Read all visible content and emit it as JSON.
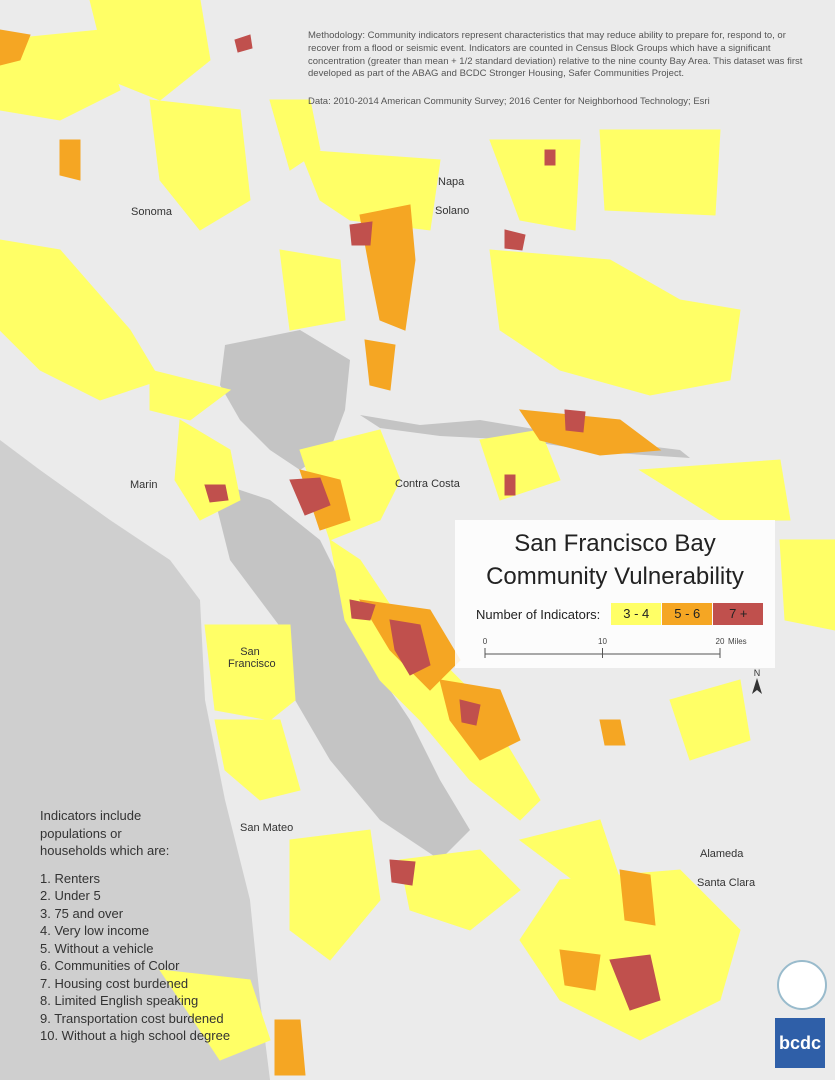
{
  "notes": {
    "methodology": "Methodology: Community indicators represent characteristics that may reduce ability to prepare for, respond to, or recover from a flood or seismic event. Indicators are counted in Census Block Groups which have a significant concentration (greater than mean + 1/2 standard deviation) relative to the nine county Bay Area. This dataset was first developed as part of the ABAG and BCDC Stronger Housing, Safer Communities Project.",
    "data_source": "Data: 2010-2014 American Community Survey; 2016 Center for Neighborhood Technology; Esri"
  },
  "place_labels": [
    "Sonoma",
    "Napa",
    "Solano",
    "Marin",
    "Contra Costa",
    "San Francisco",
    "San Mateo",
    "Alameda",
    "Santa Clara"
  ],
  "title": [
    "San Francisco Bay",
    "Community Vulnerability"
  ],
  "legend": {
    "label": "Number of Indicators:",
    "classes": [
      {
        "label": "3 - 4",
        "color": "#ffff66"
      },
      {
        "label": "5 - 6",
        "color": "#f5a623"
      },
      {
        "label": "7 +",
        "color": "#c0504d"
      }
    ]
  },
  "scale_bar": {
    "xlim": [
      0,
      20
    ],
    "ticks": [
      0,
      10,
      20
    ],
    "unit": "Miles"
  },
  "north_arrow": "N",
  "indicators": {
    "intro": "Indicators include populations or households which are:",
    "items": [
      "1. Renters",
      "2. Under 5",
      "3. 75 and over",
      "4. Very low income",
      "5. Without a vehicle",
      "6. Communities of Color",
      "7. Housing cost burdened",
      "8. Limited English speaking",
      "9. Transportation cost burdened",
      "10. Without a high school degree"
    ]
  },
  "logo": "bcdc"
}
